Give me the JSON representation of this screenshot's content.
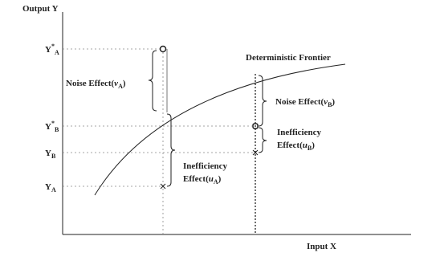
{
  "axes": {
    "y_label": "Output Y",
    "x_label": "Input X"
  },
  "y_labels": [
    {
      "base": "Y",
      "sup": "*",
      "sub": "A"
    },
    {
      "base": "Y",
      "sup": "*",
      "sub": "B"
    },
    {
      "base": "Y",
      "sub": "B"
    },
    {
      "base": "Y",
      "sub": "A"
    }
  ],
  "frontier_label": "Deterministic Frontier",
  "annotations": [
    {
      "lines": [
        {
          "text": "Noise Effect(",
          "var": "v",
          "sub": "A",
          "close": ")"
        }
      ]
    },
    {
      "lines": [
        {
          "text": "Noise Effect(",
          "var": "v",
          "sub": "B",
          "close": ")"
        }
      ]
    },
    {
      "lines": [
        {
          "text": "Inefficiency"
        },
        {
          "text": "Effect(",
          "var": "u",
          "sub": "B",
          "close": ")"
        }
      ]
    },
    {
      "lines": [
        {
          "text": "Inefficiency"
        },
        {
          "text": "Effect(",
          "var": "u",
          "sub": "A",
          "close": ")"
        }
      ]
    }
  ]
}
